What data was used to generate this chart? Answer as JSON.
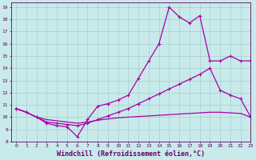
{
  "xlabel": "Windchill (Refroidissement éolien,°C)",
  "xlim": [
    -0.5,
    23
  ],
  "ylim": [
    8,
    19.4
  ],
  "yticks": [
    8,
    9,
    10,
    11,
    12,
    13,
    14,
    15,
    16,
    17,
    18,
    19
  ],
  "xticks": [
    0,
    1,
    2,
    3,
    4,
    5,
    6,
    7,
    8,
    9,
    10,
    11,
    12,
    13,
    14,
    15,
    16,
    17,
    18,
    19,
    20,
    21,
    22,
    23
  ],
  "bg_color": "#c8eaea",
  "grid_color": "#a8cccc",
  "line_color": "#aa00aa",
  "line1_x": [
    0,
    1,
    2,
    3,
    4,
    5,
    6,
    7,
    8,
    9,
    10,
    11,
    12,
    13,
    14,
    15,
    16,
    17,
    18,
    19,
    20,
    21,
    22,
    23
  ],
  "line1_y": [
    10.7,
    10.4,
    10.0,
    9.5,
    9.3,
    9.2,
    8.4,
    9.8,
    10.9,
    11.1,
    11.4,
    11.8,
    13.2,
    14.6,
    16.0,
    19.0,
    18.2,
    17.7,
    18.3,
    14.6,
    14.6,
    15.0,
    14.6,
    14.6
  ],
  "line2_x": [
    0,
    1,
    2,
    3,
    4,
    5,
    6,
    7,
    8,
    9,
    10,
    11,
    12,
    13,
    14,
    15,
    16,
    17,
    18,
    19,
    20,
    21,
    22,
    23
  ],
  "line2_y": [
    10.7,
    10.4,
    10.0,
    9.6,
    9.5,
    9.4,
    9.3,
    9.5,
    9.8,
    10.1,
    10.4,
    10.7,
    11.1,
    11.5,
    11.9,
    12.3,
    12.7,
    13.1,
    13.5,
    14.0,
    12.2,
    11.8,
    11.5,
    10.0
  ],
  "line3_x": [
    0,
    1,
    2,
    3,
    4,
    5,
    6,
    7,
    8,
    9,
    10,
    11,
    12,
    13,
    14,
    15,
    16,
    17,
    18,
    19,
    20,
    21,
    22,
    23
  ],
  "line3_y": [
    10.7,
    10.4,
    10.0,
    9.8,
    9.7,
    9.6,
    9.5,
    9.6,
    9.75,
    9.85,
    9.95,
    10.0,
    10.05,
    10.1,
    10.15,
    10.2,
    10.25,
    10.3,
    10.35,
    10.4,
    10.4,
    10.35,
    10.3,
    10.0
  ],
  "marker": "+",
  "markersize": 3,
  "linewidth": 0.9,
  "font_color": "#660066",
  "tick_fontsize": 4.5,
  "xlabel_fontsize": 6.0
}
